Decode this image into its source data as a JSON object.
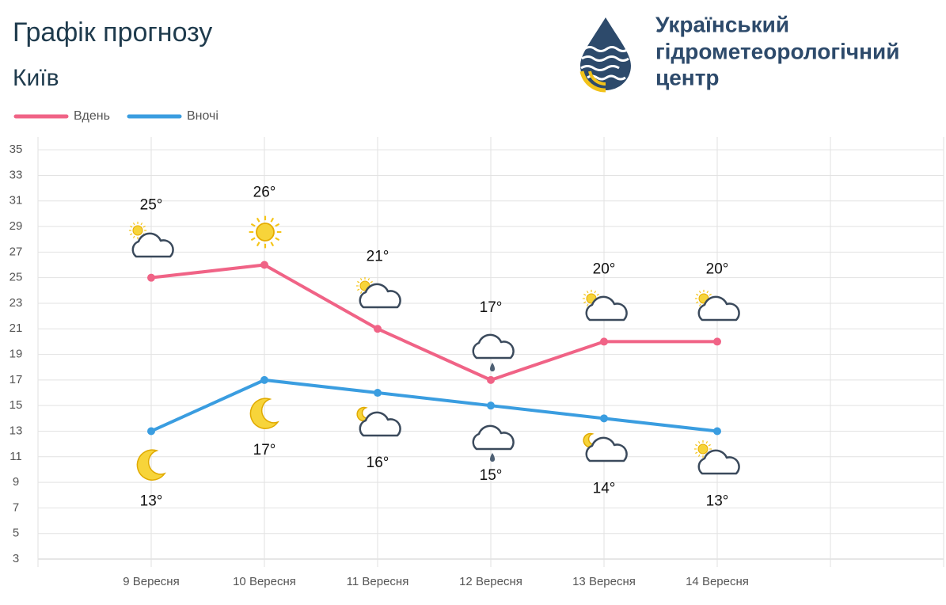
{
  "header": {
    "title": "Графік прогнозу",
    "subtitle": "Київ",
    "logo_lines": [
      "Український",
      "гідрометеорологічний",
      "центр"
    ]
  },
  "chart_data": {
    "type": "line",
    "categories": [
      null,
      "9 Вересня",
      "10 Вересня",
      "11 Вересня",
      "12 Вересня",
      "13 Вересня",
      "14 Вересня",
      null,
      null
    ],
    "series": [
      {
        "name": "Вдень",
        "color": "#f06386",
        "values": [
          null,
          25,
          26,
          21,
          17,
          20,
          20,
          null,
          null
        ],
        "value_labels": [
          null,
          "25°",
          "26°",
          "21°",
          "17°",
          "20°",
          "20°",
          null,
          null
        ]
      },
      {
        "name": "Вночі",
        "color": "#3a9de0",
        "values": [
          null,
          13,
          17,
          16,
          15,
          14,
          13,
          null,
          null
        ],
        "value_labels": [
          null,
          "13°",
          "17°",
          "16°",
          "15°",
          "14°",
          "13°",
          null,
          null
        ]
      }
    ],
    "ylim": [
      3,
      36
    ],
    "yticks": [
      3,
      5,
      7,
      9,
      11,
      13,
      15,
      17,
      19,
      21,
      23,
      25,
      27,
      29,
      31,
      33,
      35
    ],
    "grid": true,
    "legend": "top-left"
  }
}
